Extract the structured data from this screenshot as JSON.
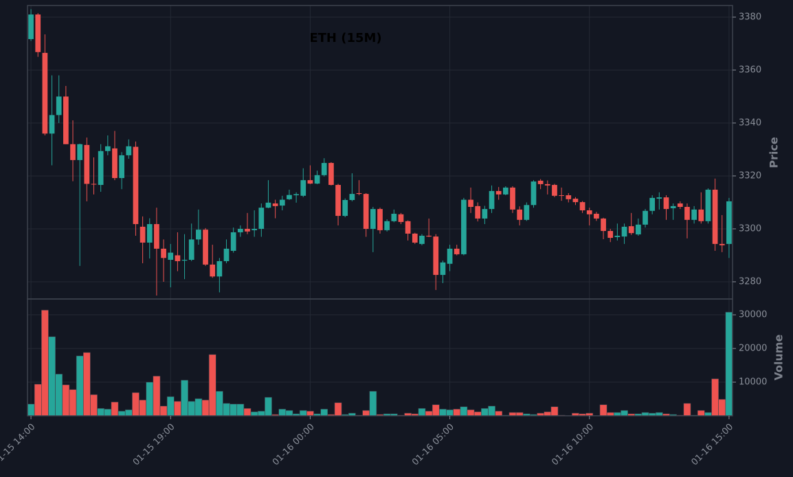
{
  "chart_data": {
    "type": "candlestick",
    "title": "ETH (15M)",
    "categories": [
      "01-15 14:00",
      null,
      null,
      null,
      null,
      null,
      null,
      null,
      null,
      null,
      null,
      null,
      null,
      null,
      null,
      null,
      null,
      null,
      null,
      null,
      "01-15 19:00",
      null,
      null,
      null,
      null,
      null,
      null,
      null,
      null,
      null,
      null,
      null,
      null,
      null,
      null,
      null,
      null,
      null,
      null,
      null,
      "01-16 00:00",
      null,
      null,
      null,
      null,
      null,
      null,
      null,
      null,
      null,
      null,
      null,
      null,
      null,
      null,
      null,
      null,
      null,
      null,
      null,
      "01-16 05:00",
      null,
      null,
      null,
      null,
      null,
      null,
      null,
      null,
      null,
      null,
      null,
      null,
      null,
      null,
      null,
      null,
      null,
      null,
      null,
      "01-16 10:00",
      null,
      null,
      null,
      null,
      null,
      null,
      null,
      null,
      null,
      null,
      null,
      null,
      null,
      null,
      null,
      null,
      null,
      null,
      null,
      "01-16 15:00"
    ],
    "open": [
      3371.7,
      3381,
      3366.5,
      3336,
      3343,
      3350,
      3332,
      3326,
      3331.7,
      3317,
      3316.6,
      3329.4,
      3330.4,
      3319.2,
      3327.8,
      3331,
      3300.8,
      3294.8,
      3301.8,
      3292.5,
      3288.3,
      3290,
      3288,
      3288.3,
      3296,
      3299.7,
      3286.5,
      3282,
      3287.8,
      3291.7,
      3298.7,
      3300,
      3299.5,
      3300,
      3308,
      3309.6,
      3308.8,
      3311.2,
      3312.7,
      3312.5,
      3318.4,
      3317.1,
      3320.3,
      3324.9,
      3316.6,
      3304.9,
      3310.9,
      3313.5,
      3313.2,
      3300,
      3307.5,
      3299.5,
      3302.9,
      3305.5,
      3302.9,
      3298.2,
      3294.3,
      3297.4,
      3297.1,
      3282.6,
      3286.8,
      3292.5,
      3290.4,
      3311,
      3308.6,
      3303.9,
      3307.5,
      3314.3,
      3313,
      3315.6,
      3307.3,
      3303.4,
      3309,
      3318.2,
      3316.9,
      3316.6,
      3312.7,
      3312.7,
      3311.4,
      3310.1,
      3307,
      3305.7,
      3303.9,
      3299.2,
      3296.9,
      3297.1,
      3301,
      3297.9,
      3301.6,
      3306.8,
      3311.4,
      3311.9,
      3307.8,
      3309.6,
      3308.3,
      3303.4,
      3307.3,
      3302.9,
      3314.8,
      3294.3,
      3294.3
    ],
    "high": [
      3383,
      3381.5,
      3373.5,
      3358,
      3358,
      3354,
      3341,
      3332.2,
      3334.5,
      3327,
      3332,
      3335.3,
      3337,
      3329,
      3333.8,
      3333,
      3304.7,
      3304,
      3308,
      3296,
      3294.3,
      3298.7,
      3298,
      3302,
      3307.3,
      3300.3,
      3294,
      3289,
      3296,
      3300.5,
      3301.3,
      3306,
      3307,
      3309.6,
      3318.4,
      3311,
      3312.5,
      3314.8,
      3313.8,
      3322.9,
      3324,
      3322,
      3326.7,
      3325.2,
      3317,
      3311.5,
      3321,
      3318.4,
      3313.5,
      3308.3,
      3308,
      3303.6,
      3307.3,
      3306,
      3303.2,
      3298.5,
      3298,
      3303.9,
      3298,
      3288,
      3294,
      3294,
      3311.7,
      3315.6,
      3310,
      3308.7,
      3316.4,
      3315.8,
      3316.1,
      3316.1,
      3308.5,
      3310,
      3318.4,
      3318.8,
      3318.3,
      3317,
      3315.6,
      3313.5,
      3312,
      3310.5,
      3308,
      3306.4,
      3304.2,
      3300,
      3302,
      3302,
      3306,
      3303.9,
      3307.5,
      3312.7,
      3313.8,
      3312.7,
      3309.6,
      3310.4,
      3309.6,
      3308.6,
      3313.8,
      3315.3,
      3319,
      3305.2,
      3311.7
    ],
    "low": [
      3371,
      3365,
      3335.3,
      3324,
      3340,
      3332,
      3318,
      3286,
      3310.4,
      3313,
      3314,
      3327.8,
      3318.4,
      3315,
      3326.5,
      3297.4,
      3287,
      3288.8,
      3274.8,
      3280,
      3277.9,
      3284,
      3281,
      3287.8,
      3294,
      3286,
      3281.5,
      3276,
      3287,
      3291,
      3297,
      3298,
      3297,
      3297,
      3307.8,
      3304,
      3307,
      3310.9,
      3309.9,
      3312,
      3316.9,
      3316.9,
      3319.8,
      3316.4,
      3301.3,
      3304.4,
      3310.4,
      3312.7,
      3297,
      3291.2,
      3298.2,
      3299,
      3302.5,
      3301.8,
      3295.6,
      3294.3,
      3293.8,
      3296.9,
      3276.9,
      3279.5,
      3284,
      3290,
      3290,
      3306,
      3302.8,
      3301.8,
      3306,
      3311,
      3312.7,
      3306,
      3301.3,
      3303,
      3308,
      3315,
      3313,
      3312,
      3310.6,
      3310,
      3309,
      3306,
      3301.3,
      3303,
      3296.1,
      3295,
      3295.6,
      3294.3,
      3297.7,
      3297.4,
      3300.5,
      3305.5,
      3307.3,
      3303.4,
      3303.4,
      3307.5,
      3296.4,
      3302,
      3302,
      3302,
      3291.7,
      3291.2,
      3289
    ],
    "close": [
      3381,
      3366.8,
      3336,
      3343,
      3350,
      3332,
      3326,
      3332,
      3317,
      3316.8,
      3329.4,
      3331.2,
      3319.2,
      3327.8,
      3331.2,
      3301.8,
      3294.8,
      3301.8,
      3292.5,
      3289,
      3291,
      3287.8,
      3288.3,
      3296,
      3299.7,
      3286.5,
      3282,
      3287.8,
      3292.5,
      3298.7,
      3300,
      3299,
      3300,
      3308,
      3309.9,
      3308.6,
      3311,
      3312.8,
      3313.1,
      3318.4,
      3317.1,
      3320.3,
      3324.9,
      3316.6,
      3304.9,
      3310.9,
      3313.2,
      3313.2,
      3300,
      3307.5,
      3299.5,
      3302.9,
      3305.7,
      3302.6,
      3298.2,
      3294.8,
      3297.4,
      3297.1,
      3282.6,
      3287.3,
      3292.5,
      3290.4,
      3311,
      3308.3,
      3303.9,
      3307.5,
      3314.3,
      3313,
      3315.6,
      3307.3,
      3303.4,
      3309,
      3317.9,
      3316.9,
      3316.4,
      3312.5,
      3312.5,
      3311.2,
      3310.1,
      3307,
      3305.5,
      3303.9,
      3299.2,
      3296.6,
      3297.4,
      3300.8,
      3298.4,
      3301.6,
      3306.8,
      3311.7,
      3311.9,
      3307.5,
      3308.6,
      3308.3,
      3303.4,
      3307.3,
      3302.9,
      3314.8,
      3294.3,
      3293.8,
      3310.4
    ],
    "volume": [
      3500,
      9400,
      31400,
      23500,
      12400,
      9200,
      7800,
      17800,
      18800,
      6300,
      2200,
      2000,
      4100,
      1400,
      1800,
      6900,
      4700,
      10000,
      11800,
      2900,
      5700,
      4300,
      10600,
      4300,
      5100,
      4700,
      18200,
      7300,
      3700,
      3500,
      3500,
      2200,
      1200,
      1400,
      5500,
      400,
      2000,
      1600,
      600,
      1600,
      1400,
      600,
      2000,
      400,
      3900,
      400,
      800,
      200,
      1600,
      7300,
      400,
      600,
      600,
      200,
      800,
      600,
      2200,
      1400,
      3300,
      2000,
      1800,
      2000,
      2700,
      1800,
      1200,
      2200,
      2900,
      1400,
      200,
      1000,
      1000,
      600,
      400,
      800,
      1200,
      2700,
      200,
      100,
      800,
      600,
      800,
      100,
      3300,
      1000,
      1000,
      1600,
      600,
      600,
      1000,
      800,
      1000,
      600,
      400,
      200,
      3700,
      200,
      1600,
      1000,
      11000,
      4900,
      30800
    ],
    "up_color": "#26a69a",
    "down_color": "#ef5350",
    "y_label": "Price",
    "ylim": [
      3273.5,
      3384.4
    ],
    "yticks": [
      3280,
      3300,
      3320,
      3340,
      3360,
      3380
    ],
    "y2_label": "Volume",
    "y2lim": [
      0,
      34700
    ],
    "y2ticks": [
      10000,
      20000,
      30000
    ],
    "grid": true
  }
}
